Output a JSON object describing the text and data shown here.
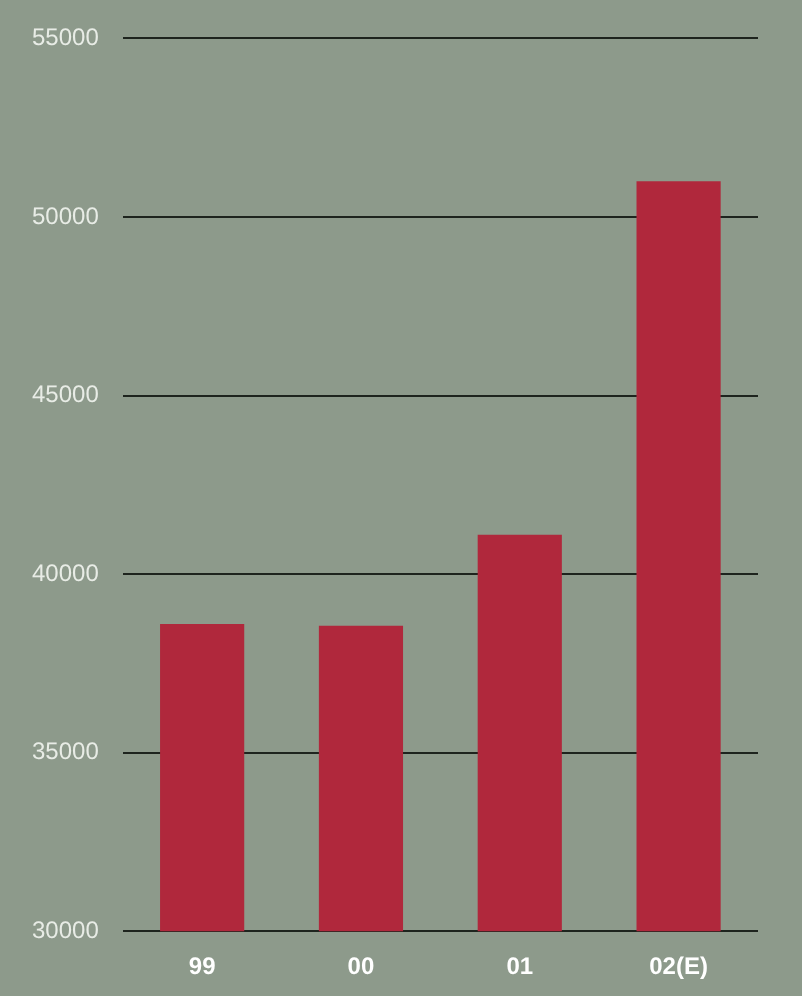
{
  "chart_data": {
    "type": "bar",
    "categories": [
      "99",
      "00",
      "01",
      "02(E)"
    ],
    "values": [
      38600,
      38550,
      41100,
      51000
    ],
    "color": "#b0283c",
    "ylim": [
      30000,
      55000
    ],
    "yticks": [
      30000,
      35000,
      40000,
      45000,
      50000,
      55000
    ],
    "grid": "y"
  }
}
